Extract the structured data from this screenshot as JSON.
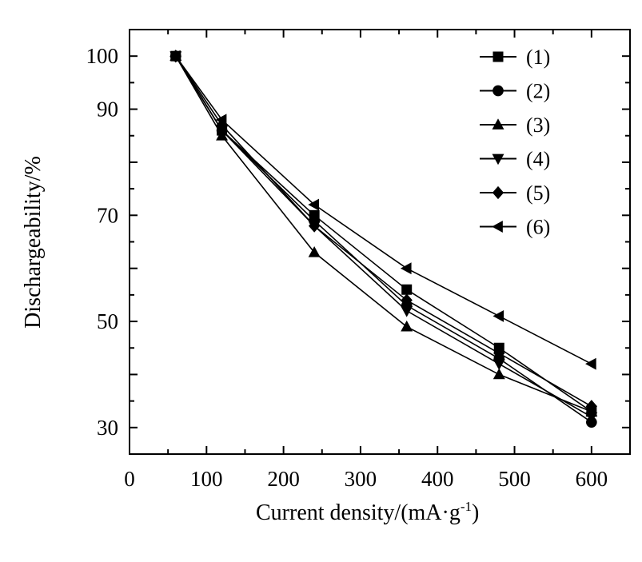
{
  "chart_data": {
    "type": "line",
    "title": "",
    "xlabel": "Current density/(mA·g",
    "xlabel_sup": "-1",
    "xlabel_end": ")",
    "ylabel": "Dischargeability/%",
    "xlim": [
      0,
      650
    ],
    "ylim": [
      25,
      105
    ],
    "xticks": [
      0,
      100,
      200,
      300,
      400,
      500,
      600
    ],
    "yticks": [
      30,
      50,
      70,
      90,
      100
    ],
    "grid": false,
    "legend_position": "top-right",
    "x": [
      60,
      120,
      240,
      360,
      480,
      600
    ],
    "series": [
      {
        "name": "(1)",
        "marker": "square",
        "values": [
          100,
          86,
          70,
          56,
          45,
          33
        ]
      },
      {
        "name": "(2)",
        "marker": "circle",
        "values": [
          100,
          86,
          69,
          53,
          43,
          31
        ]
      },
      {
        "name": "(3)",
        "marker": "triangle-up",
        "values": [
          100,
          85,
          63,
          49,
          40,
          33
        ]
      },
      {
        "name": "(4)",
        "marker": "triangle-down",
        "values": [
          100,
          86,
          68,
          52,
          42,
          32
        ]
      },
      {
        "name": "(5)",
        "marker": "diamond",
        "values": [
          100,
          87,
          68,
          54,
          44,
          34
        ]
      },
      {
        "name": "(6)",
        "marker": "triangle-left",
        "values": [
          100,
          88,
          72,
          60,
          51,
          42
        ]
      }
    ]
  }
}
